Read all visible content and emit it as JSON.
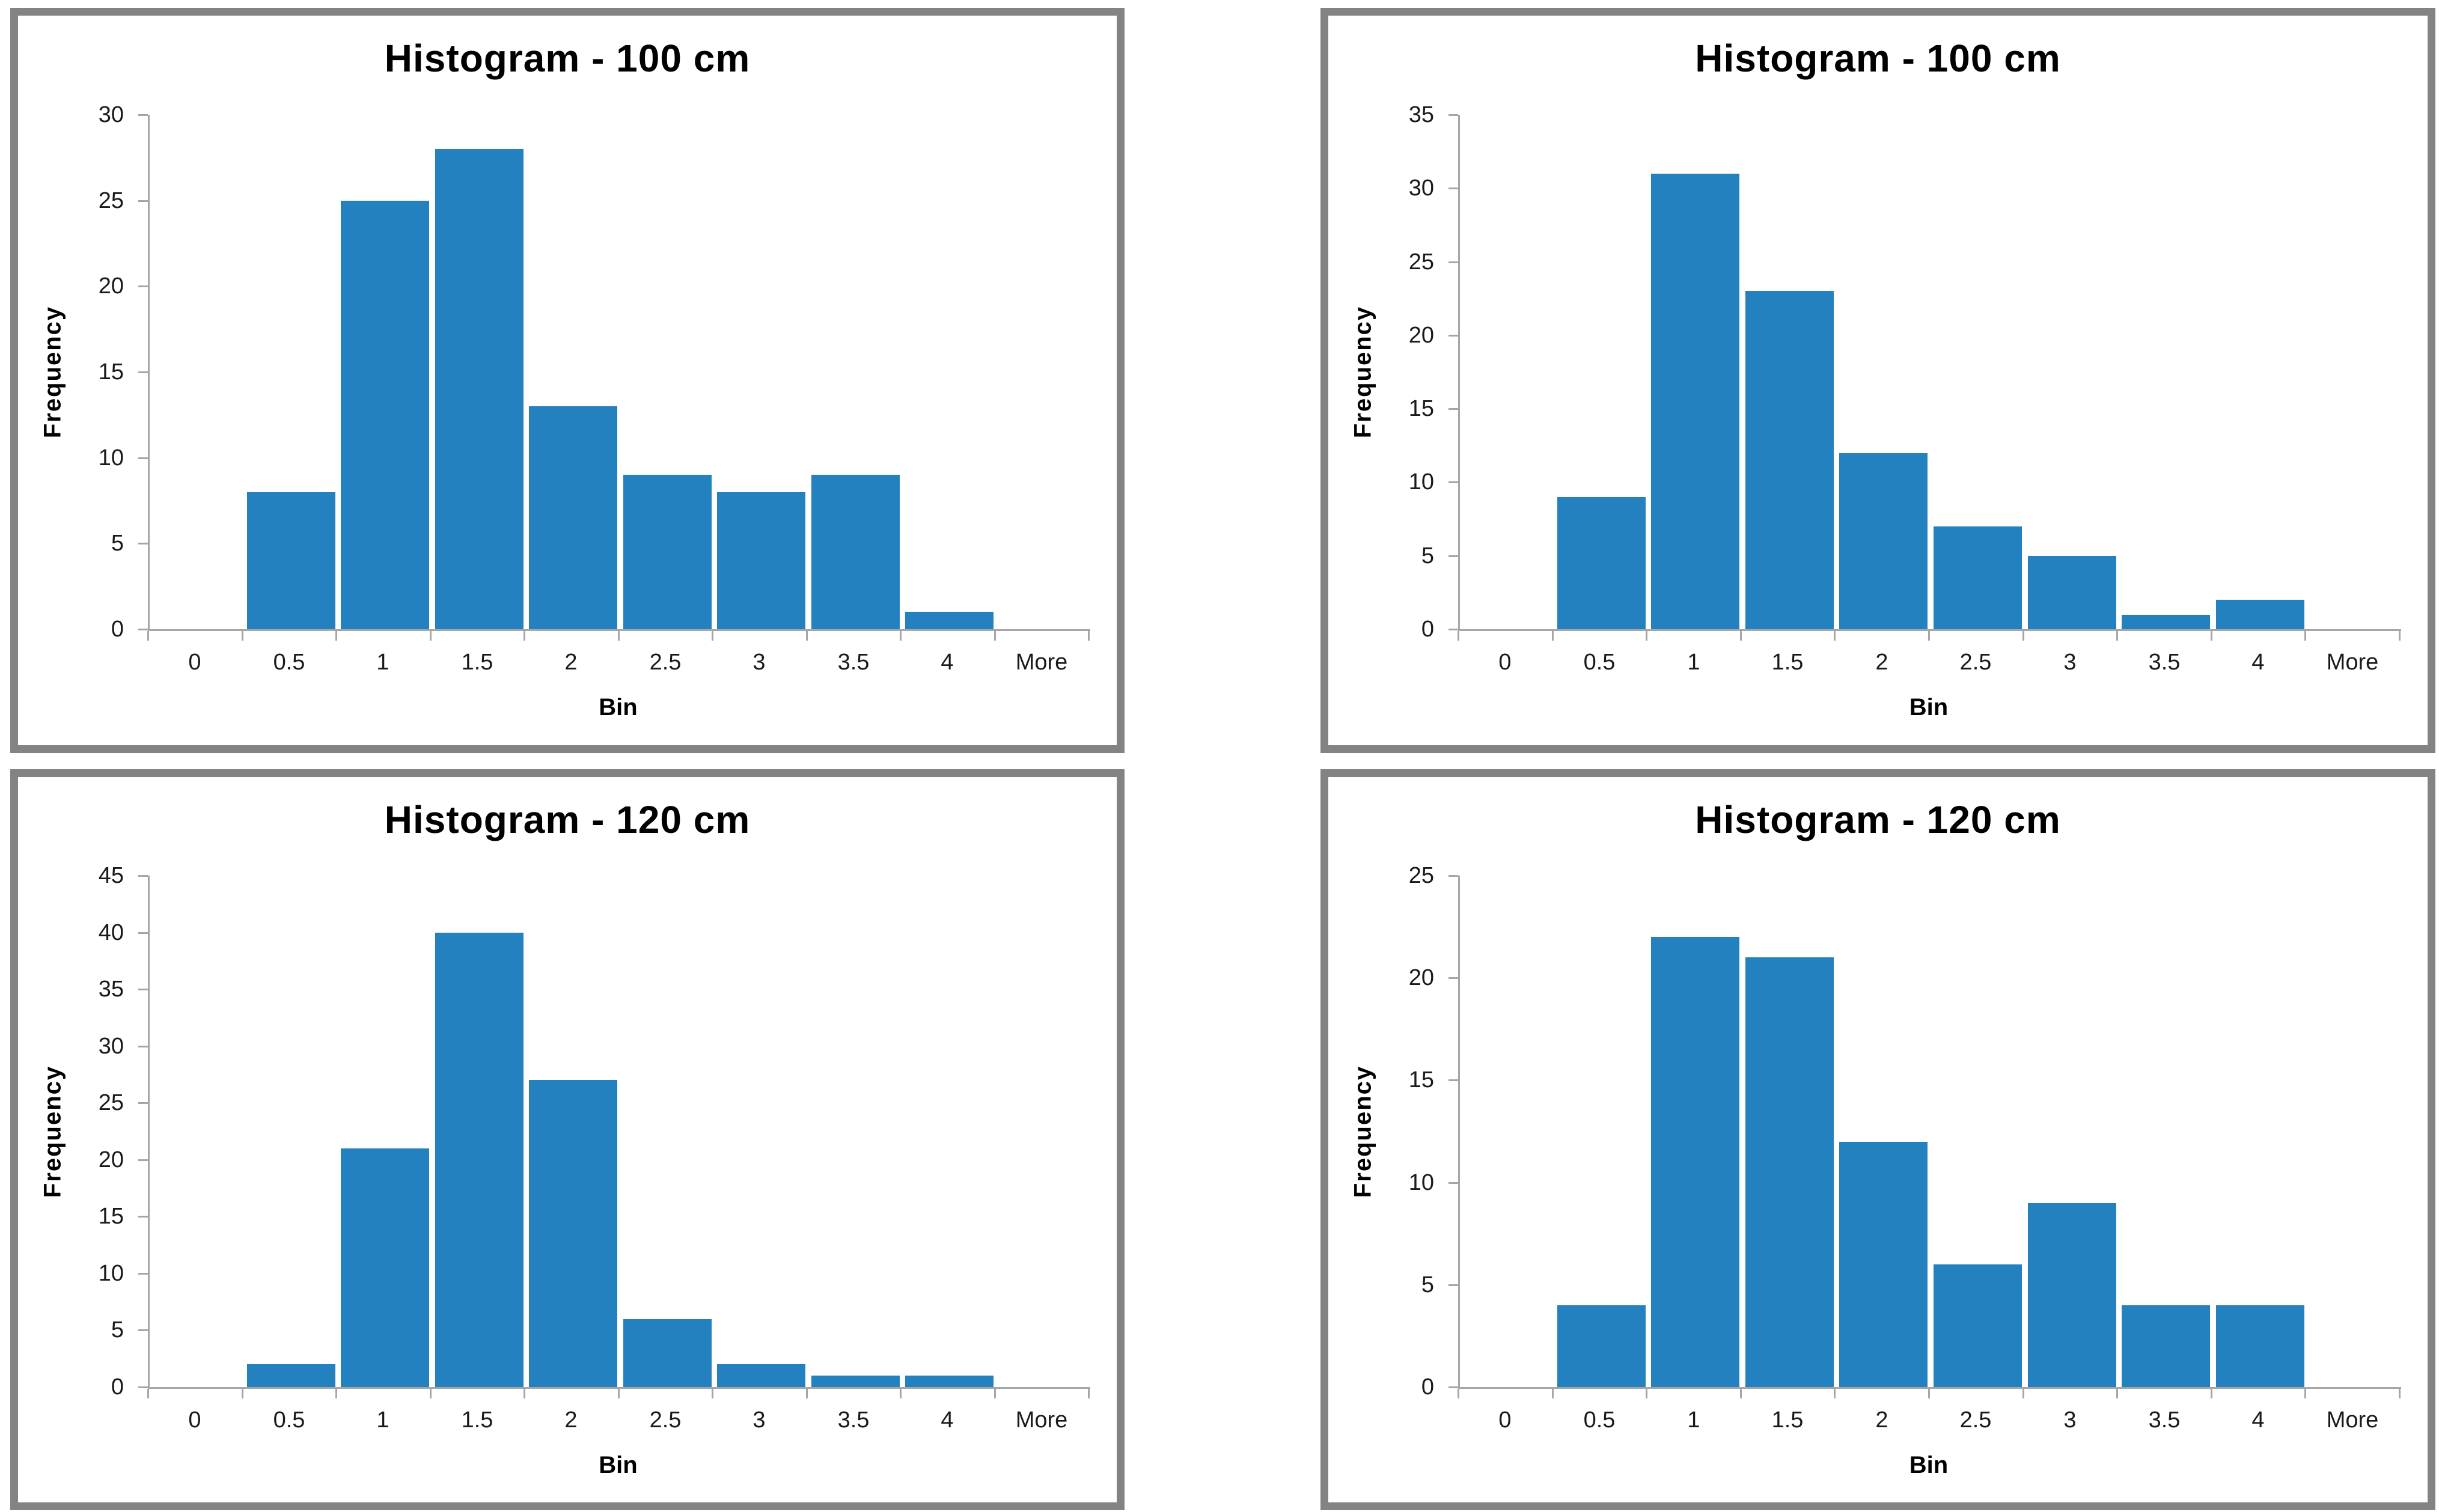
{
  "page": {
    "background": "#FFFFFF"
  },
  "styles": {
    "bar_color": "#2481BF",
    "panel_border_color": "#838383",
    "axis_line_color": "#A6A6A6",
    "title_color": "#000000",
    "tick_text_color": "#1a1a1a"
  },
  "chart_data": [
    {
      "type": "bar",
      "position": "top-left",
      "title": "Histogram - 100 cm",
      "xlabel": "Bin",
      "ylabel": "Frequency",
      "categories": [
        "0",
        "0.5",
        "1",
        "1.5",
        "2",
        "2.5",
        "3",
        "3.5",
        "4",
        "More"
      ],
      "values": [
        0,
        8,
        25,
        28,
        13,
        9,
        8,
        9,
        1,
        0
      ],
      "ylim": [
        0,
        30
      ],
      "yticks": [
        0,
        5,
        10,
        15,
        20,
        25,
        30
      ],
      "grid": false,
      "legend": false
    },
    {
      "type": "bar",
      "position": "top-right",
      "title": "Histogram - 100 cm",
      "xlabel": "Bin",
      "ylabel": "Frequency",
      "categories": [
        "0",
        "0.5",
        "1",
        "1.5",
        "2",
        "2.5",
        "3",
        "3.5",
        "4",
        "More"
      ],
      "values": [
        0,
        9,
        31,
        23,
        12,
        7,
        5,
        1,
        2,
        0
      ],
      "ylim": [
        0,
        35
      ],
      "yticks": [
        0,
        5,
        10,
        15,
        20,
        25,
        30,
        35
      ],
      "grid": false,
      "legend": false
    },
    {
      "type": "bar",
      "position": "bottom-left",
      "title": "Histogram - 120 cm",
      "xlabel": "Bin",
      "ylabel": "Frequency",
      "categories": [
        "0",
        "0.5",
        "1",
        "1.5",
        "2",
        "2.5",
        "3",
        "3.5",
        "4",
        "More"
      ],
      "values": [
        0,
        2,
        21,
        40,
        27,
        6,
        2,
        1,
        1,
        0
      ],
      "ylim": [
        0,
        45
      ],
      "yticks": [
        0,
        5,
        10,
        15,
        20,
        25,
        30,
        35,
        40,
        45
      ],
      "grid": false,
      "legend": false
    },
    {
      "type": "bar",
      "position": "bottom-right",
      "title": "Histogram - 120 cm",
      "xlabel": "Bin",
      "ylabel": "Frequency",
      "categories": [
        "0",
        "0.5",
        "1",
        "1.5",
        "2",
        "2.5",
        "3",
        "3.5",
        "4",
        "More"
      ],
      "values": [
        0,
        4,
        22,
        21,
        12,
        6,
        9,
        4,
        4,
        0
      ],
      "ylim": [
        0,
        25
      ],
      "yticks": [
        0,
        5,
        10,
        15,
        20,
        25
      ],
      "grid": false,
      "legend": false
    }
  ]
}
